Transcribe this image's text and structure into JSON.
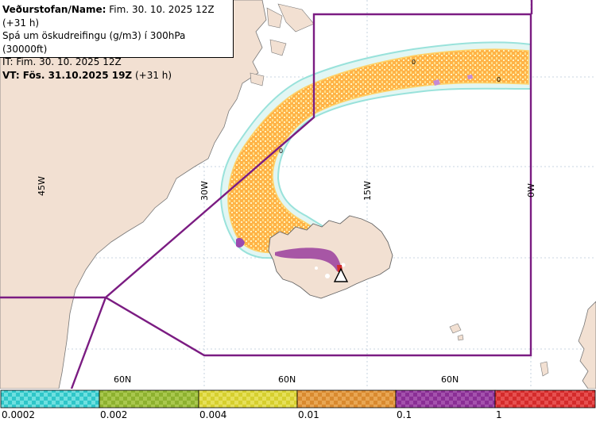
{
  "info": {
    "line1_bold": "Veðurstofan/Name:",
    "line1_rest": "Fim. 30. 10. 2025 12Z (+31 h)",
    "line2": "Spá um öskudreifingu (g/m3) í 300hPa (30000ft)",
    "line3": "IT: Fim. 30. 10. 2025 12Z",
    "line4_bold": "VT: Fös. 31.10.2025 19Z",
    "line4_rest": "(+31 h)"
  },
  "map": {
    "meridian_labels": [
      "45W",
      "30W",
      "15W",
      "0W"
    ],
    "parallel_labels": [
      "60N",
      "60N",
      "60N"
    ],
    "contour_labels": [
      "0",
      "0",
      "0"
    ],
    "colors": {
      "land": "#f2e0d2",
      "sea": "#ffffff",
      "boundary": "#7b1c82",
      "grid": "#b9c9d8",
      "ash_low": "#ffcf80",
      "ash_mid": "#ffb347",
      "ash_high": "#8e3aa6"
    }
  },
  "legend": {
    "labels": [
      "0.0002",
      "0.002",
      "0.004",
      "0.01",
      "0.1",
      "1"
    ],
    "colors": [
      "#2fc6c8",
      "#8db12f",
      "#d6cf2e",
      "#d98a2f",
      "#8a2f95",
      "#d42b2b"
    ]
  }
}
